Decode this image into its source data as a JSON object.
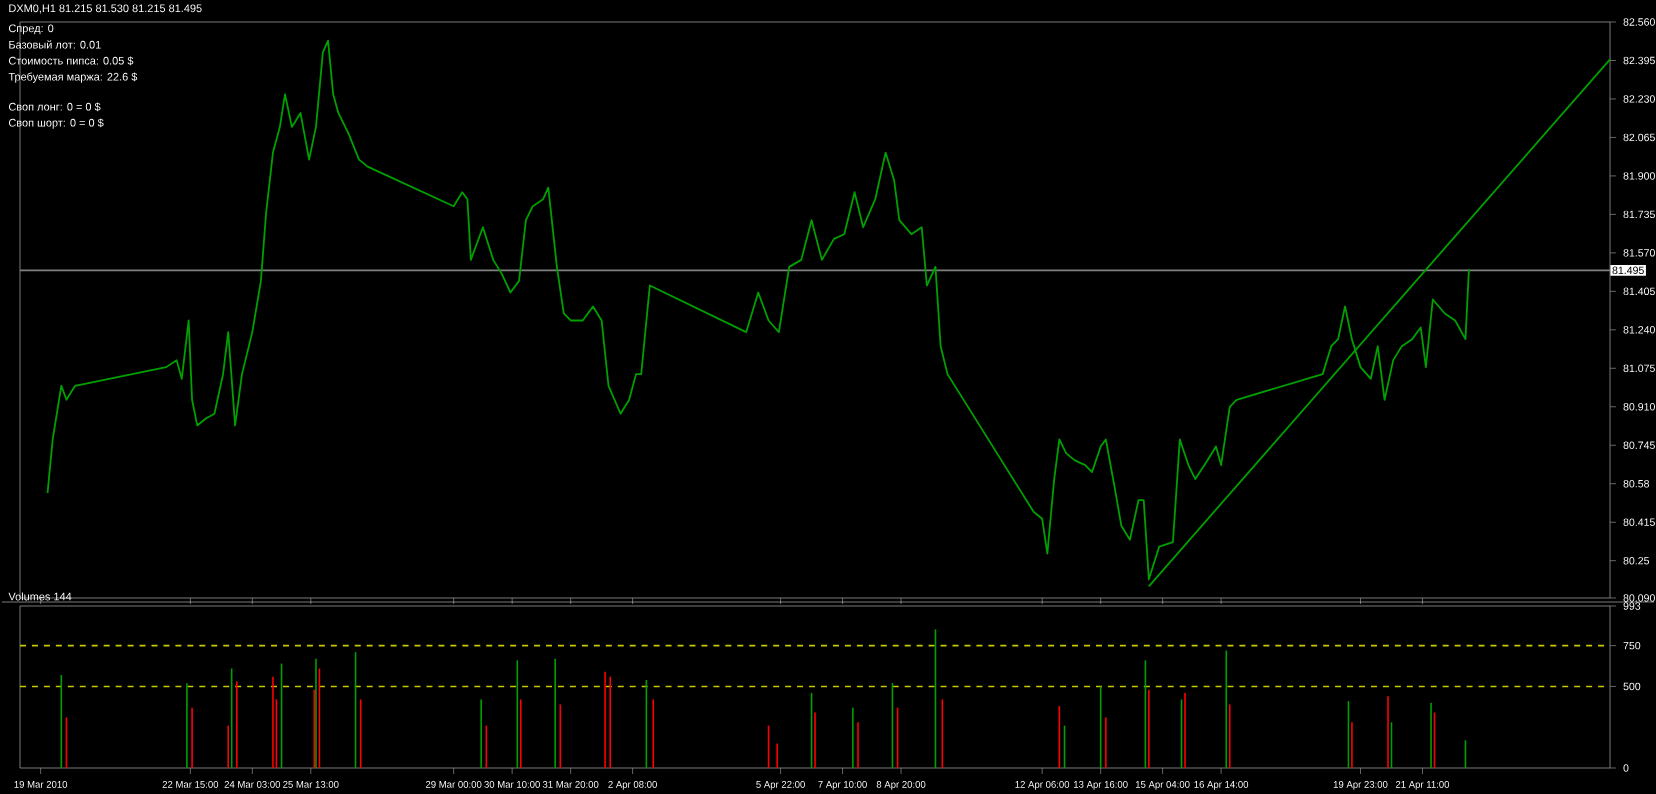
{
  "chart_data": [
    {
      "type": "line",
      "title": "DXM0,H1  81.215 81.530 81.215 81.495",
      "annotations": [
        "Спред: 0",
        "Базовый лот: 0.01",
        "Стоимость пипса: 0.05 $",
        "Требуемая маржа: 22.6 $",
        "Своп лонг: 0 = 0 $",
        "Своп шорт: 0 = 0 $"
      ],
      "xlim": [
        "2010-03-18T12:00",
        "2010-04-26T00:00"
      ],
      "xticks": [
        {
          "value": "2010-03-19T00:00",
          "label": null
        },
        {
          "value": "2010-03-22T15:00",
          "label": null
        },
        {
          "value": "2010-03-24T03:00",
          "label": null
        },
        {
          "value": "2010-03-25T13:00",
          "label": null
        },
        {
          "value": "2010-03-29T00:00",
          "label": null
        },
        {
          "value": "2010-03-30T10:00",
          "label": null
        },
        {
          "value": "2010-03-31T20:00",
          "label": null
        },
        {
          "value": "2010-04-02T08:00",
          "label": null
        },
        {
          "value": "2010-04-05T22:00",
          "label": null
        },
        {
          "value": "2010-04-07T10:00",
          "label": null
        },
        {
          "value": "2010-04-08T20:00",
          "label": null
        },
        {
          "value": "2010-04-12T06:00",
          "label": null
        },
        {
          "value": "2010-04-13T16:00",
          "label": null
        },
        {
          "value": "2010-04-15T04:00",
          "label": null
        },
        {
          "value": "2010-04-16T14:00",
          "label": null
        },
        {
          "value": "2010-04-19T23:00",
          "label": null
        },
        {
          "value": "2010-04-21T11:00",
          "label": null
        }
      ],
      "ylim": [
        80.09,
        82.56
      ],
      "yticks": [
        {
          "value": 80.09,
          "label": "80.090"
        },
        80.25,
        80.415,
        80.58,
        80.745,
        {
          "value": 80.91,
          "label": "80.910"
        },
        81.075,
        {
          "value": 81.24,
          "label": "81.240"
        },
        81.405,
        {
          "value": 81.57,
          "label": "81.570"
        },
        81.735,
        {
          "value": 81.9,
          "label": "81.900"
        },
        82.065,
        {
          "value": 82.23,
          "label": "82.230"
        },
        82.395,
        {
          "value": 82.56,
          "label": "82.560"
        }
      ],
      "tick_labels": "y",
      "ref_lines": [
        {
          "axis": "y",
          "value": 81.495,
          "label": "81.495",
          "color": "#808080"
        }
      ],
      "series": [
        {
          "color": "#00a000",
          "x": [
            "2010-03-19T04:00",
            "2010-03-19T07:00",
            "2010-03-19T12:00",
            "2010-03-19T15:00",
            "2010-03-19T20:00",
            "2010-03-22T01:00",
            "2010-03-22T07:00",
            "2010-03-22T10:00",
            "2010-03-22T14:00",
            "2010-03-22T16:00",
            "2010-03-22T19:00",
            "2010-03-23T00:00",
            "2010-03-23T05:00",
            "2010-03-23T10:00",
            "2010-03-23T13:00",
            "2010-03-23T17:00",
            "2010-03-23T21:00",
            "2010-03-24T03:00",
            "2010-03-24T08:00",
            "2010-03-24T11:00",
            "2010-03-24T15:00",
            "2010-03-24T19:00",
            "2010-03-24T22:00",
            "2010-03-25T02:00",
            "2010-03-25T07:00",
            "2010-03-25T12:00",
            "2010-03-25T16:00",
            "2010-03-25T20:00",
            "2010-03-25T23:00",
            "2010-03-26T02:00",
            "2010-03-26T05:00",
            "2010-03-26T11:00",
            "2010-03-26T17:00",
            "2010-03-26T22:00",
            "2010-03-29T00:00",
            "2010-03-29T05:00",
            "2010-03-29T08:00",
            "2010-03-29T10:00",
            "2010-03-29T17:00",
            "2010-03-29T23:00",
            "2010-03-30T04:00",
            "2010-03-30T09:00",
            "2010-03-30T14:00",
            "2010-03-30T18:00",
            "2010-03-30T22:00",
            "2010-03-31T04:00",
            "2010-03-31T07:00",
            "2010-03-31T12:00",
            "2010-03-31T16:00",
            "2010-03-31T20:00",
            "2010-04-01T03:00",
            "2010-04-01T09:00",
            "2010-04-01T14:00",
            "2010-04-01T18:00",
            "2010-04-02T01:00",
            "2010-04-02T06:00",
            "2010-04-02T10:00",
            "2010-04-02T13:00",
            "2010-04-02T18:00",
            "2010-04-05T02:00",
            "2010-04-05T09:00",
            "2010-04-05T15:00",
            "2010-04-05T21:00",
            "2010-04-06T03:00",
            "2010-04-06T10:00",
            "2010-04-06T16:00",
            "2010-04-06T22:00",
            "2010-04-07T05:00",
            "2010-04-07T11:00",
            "2010-04-07T17:00",
            "2010-04-07T22:00",
            "2010-04-08T05:00",
            "2010-04-08T11:00",
            "2010-04-08T16:00",
            "2010-04-08T19:00",
            "2010-04-09T02:00",
            "2010-04-09T08:00",
            "2010-04-09T11:00",
            "2010-04-09T16:00",
            "2010-04-09T19:00",
            "2010-04-09T23:00",
            "2010-04-12T01:00",
            "2010-04-12T06:00",
            "2010-04-12T09:00",
            "2010-04-12T13:00",
            "2010-04-12T16:00",
            "2010-04-12T20:00",
            "2010-04-13T01:00",
            "2010-04-13T07:00",
            "2010-04-13T11:00",
            "2010-04-13T16:00",
            "2010-04-13T19:00",
            "2010-04-14T00:00",
            "2010-04-14T04:00",
            "2010-04-14T09:00",
            "2010-04-14T14:00",
            "2010-04-14T17:00",
            "2010-04-14T20:00",
            "2010-04-15T02:00",
            "2010-04-15T10:00",
            "2010-04-15T14:00",
            "2010-04-15T19:00",
            "2010-04-15T23:00",
            "2010-04-16T06:00",
            "2010-04-16T11:00",
            "2010-04-16T14:00",
            "2010-04-16T19:00",
            "2010-04-16T23:00",
            "2010-04-19T01:00",
            "2010-04-19T06:00",
            "2010-04-19T10:00",
            "2010-04-19T14:00",
            "2010-04-19T18:00",
            "2010-04-19T23:00",
            "2010-04-20T05:00",
            "2010-04-20T09:00",
            "2010-04-20T13:00",
            "2010-04-20T18:00",
            "2010-04-20T23:00",
            "2010-04-21T05:00",
            "2010-04-21T10:00",
            "2010-04-21T13:00",
            "2010-04-21T17:00",
            "2010-04-22T00:00",
            "2010-04-22T06:00",
            "2010-04-22T12:00",
            "2010-04-22T14:00"
          ],
          "values": [
            80.54,
            80.77,
            81.0,
            80.94,
            81.0,
            81.08,
            81.11,
            81.03,
            81.28,
            80.94,
            80.83,
            80.86,
            80.88,
            81.05,
            81.23,
            80.83,
            81.05,
            81.23,
            81.45,
            81.74,
            82.0,
            82.11,
            82.25,
            82.11,
            82.17,
            81.97,
            82.11,
            82.43,
            82.48,
            82.25,
            82.17,
            82.08,
            81.97,
            81.94,
            81.77,
            81.83,
            81.8,
            81.54,
            81.68,
            81.54,
            81.48,
            81.4,
            81.45,
            81.71,
            81.77,
            81.8,
            81.85,
            81.51,
            81.31,
            81.28,
            81.28,
            81.34,
            81.28,
            81.0,
            80.88,
            80.94,
            81.05,
            81.05,
            81.43,
            81.23,
            81.4,
            81.28,
            81.23,
            81.51,
            81.54,
            81.71,
            81.54,
            81.63,
            81.65,
            81.83,
            81.68,
            81.8,
            82.0,
            81.88,
            81.71,
            81.65,
            81.68,
            81.43,
            81.51,
            81.17,
            81.05,
            80.46,
            80.43,
            80.28,
            80.6,
            80.77,
            80.71,
            80.68,
            80.66,
            80.63,
            80.74,
            80.77,
            80.57,
            80.4,
            80.34,
            80.51,
            80.51,
            80.17,
            80.31,
            80.33,
            80.77,
            80.66,
            80.6,
            80.68,
            80.74,
            80.66,
            80.91,
            80.94,
            81.05,
            81.17,
            81.2,
            81.34,
            81.2,
            81.08,
            81.03,
            81.17,
            80.94,
            81.11,
            81.17,
            81.2,
            81.25,
            81.08,
            81.37,
            81.31,
            81.28,
            81.2,
            81.5
          ]
        },
        {
          "type": "line",
          "color": "#00a000",
          "x": [
            "2010-04-14T20:00",
            "2010-04-26T00:00"
          ],
          "values": [
            80.14,
            82.4
          ]
        }
      ]
    },
    {
      "type": "bar",
      "title": "Volumes 144",
      "xlim": [
        "2010-03-18T12:00",
        "2010-04-26T00:00"
      ],
      "xticks": [
        {
          "value": "2010-03-19T00:00",
          "label": "19 Mar 2010"
        },
        {
          "value": "2010-03-22T15:00",
          "label": "22 Mar 15:00"
        },
        {
          "value": "2010-03-24T03:00",
          "label": "24 Mar 03:00"
        },
        {
          "value": "2010-03-25T13:00",
          "label": "25 Mar 13:00"
        },
        {
          "value": "2010-03-29T00:00",
          "label": "29 Mar 00:00"
        },
        {
          "value": "2010-03-30T10:00",
          "label": "30 Mar 10:00"
        },
        {
          "value": "2010-03-31T20:00",
          "label": "31 Mar 20:00"
        },
        {
          "value": "2010-04-02T08:00",
          "label": "2 Apr 08:00"
        },
        {
          "value": "2010-04-05T22:00",
          "label": "5 Apr 22:00"
        },
        {
          "value": "2010-04-07T10:00",
          "label": "7 Apr 10:00"
        },
        {
          "value": "2010-04-08T20:00",
          "label": "8 Apr 20:00"
        },
        {
          "value": "2010-04-12T06:00",
          "label": "12 Apr 06:00"
        },
        {
          "value": "2010-04-13T16:00",
          "label": "13 Apr 16:00"
        },
        {
          "value": "2010-04-15T04:00",
          "label": "15 Apr 04:00"
        },
        {
          "value": "2010-04-16T14:00",
          "label": "16 Apr 14:00"
        },
        {
          "value": "2010-04-19T23:00",
          "label": "19 Apr 23:00"
        },
        {
          "value": "2010-04-21T11:00",
          "label": "21 Apr 11:00"
        }
      ],
      "ylim": [
        0,
        993
      ],
      "yticks": [
        0,
        500,
        750,
        993
      ],
      "ref_lines": [
        {
          "axis": "y",
          "value": 750,
          "color": "#c8c800",
          "line_style": "dashed"
        },
        {
          "axis": "y",
          "value": 500,
          "color": "#c8c800",
          "line_style": "dashed"
        }
      ],
      "x": [
        "2010-03-19T12:00",
        "2010-03-19T15:00",
        "2010-03-22T13:00",
        "2010-03-22T16:00",
        "2010-03-23T13:00",
        "2010-03-23T15:00",
        "2010-03-23T18:00",
        "2010-03-24T15:00",
        "2010-03-24T17:00",
        "2010-03-24T20:00",
        "2010-03-25T15:00",
        "2010-03-25T16:00",
        "2010-03-25T18:00",
        "2010-03-26T15:00",
        "2010-03-26T18:00",
        "2010-03-29T16:00",
        "2010-03-29T19:00",
        "2010-03-30T13:00",
        "2010-03-30T15:00",
        "2010-03-31T11:00",
        "2010-03-31T14:00",
        "2010-04-01T16:00",
        "2010-04-01T19:00",
        "2010-04-02T16:00",
        "2010-04-02T20:00",
        "2010-04-05T15:00",
        "2010-04-05T20:00",
        "2010-04-06T16:00",
        "2010-04-06T18:00",
        "2010-04-07T16:00",
        "2010-04-07T19:00",
        "2010-04-08T15:00",
        "2010-04-08T18:00",
        "2010-04-09T16:00",
        "2010-04-09T20:00",
        "2010-04-12T16:00",
        "2010-04-12T19:00",
        "2010-04-13T16:00",
        "2010-04-13T19:00",
        "2010-04-14T18:00",
        "2010-04-14T20:00",
        "2010-04-15T15:00",
        "2010-04-15T17:00",
        "2010-04-16T17:00",
        "2010-04-16T19:00",
        "2010-04-19T16:00",
        "2010-04-19T18:00",
        "2010-04-20T15:00",
        "2010-04-20T17:00",
        "2010-04-21T16:00",
        "2010-04-21T18:00",
        "2010-04-22T12:00"
      ],
      "values": [
        570,
        310,
        520,
        370,
        260,
        610,
        530,
        560,
        420,
        640,
        480,
        670,
        610,
        710,
        420,
        420,
        260,
        660,
        420,
        670,
        390,
        590,
        560,
        540,
        420,
        260,
        150,
        460,
        340,
        370,
        280,
        520,
        370,
        850,
        420,
        380,
        260,
        500,
        310,
        660,
        480,
        420,
        460,
        720,
        390,
        410,
        280,
        440,
        280,
        400,
        340,
        170
      ],
      "colors": [
        "#00a000",
        "#ff0000",
        "#00a000",
        "#ff0000",
        "#ff0000",
        "#00a000",
        "#ff0000",
        "#ff0000",
        "#ff0000",
        "#00a000",
        "#ff0000",
        "#00a000",
        "#ff0000",
        "#00a000",
        "#ff0000",
        "#00a000",
        "#ff0000",
        "#00a000",
        "#ff0000",
        "#00a000",
        "#ff0000",
        "#ff0000",
        "#ff0000",
        "#00a000",
        "#ff0000",
        "#ff0000",
        "#ff0000",
        "#00a000",
        "#ff0000",
        "#00a000",
        "#ff0000",
        "#00a000",
        "#ff0000",
        "#00a000",
        "#ff0000",
        "#ff0000",
        "#00a000",
        "#00a000",
        "#ff0000",
        "#00a000",
        "#ff0000",
        "#00a000",
        "#ff0000",
        "#00a000",
        "#ff0000",
        "#00a000",
        "#ff0000",
        "#ff0000",
        "#00a000",
        "#00a000",
        "#ff0000",
        "#00a000"
      ]
    }
  ]
}
